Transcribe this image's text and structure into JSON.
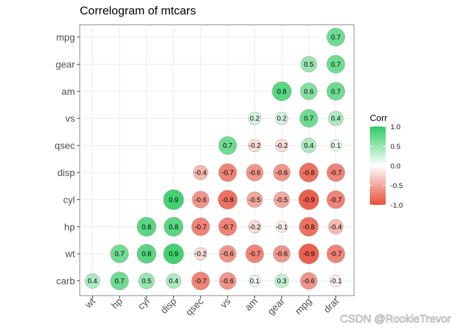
{
  "chart_data": {
    "type": "heatmap",
    "title": "Correlogram of mtcars",
    "x_labels": [
      "wt",
      "hp",
      "cyl",
      "disp",
      "qsec",
      "vs",
      "am",
      "gear",
      "mpg",
      "drat"
    ],
    "y_labels": [
      "mpg",
      "gear",
      "am",
      "vs",
      "qsec",
      "disp",
      "cyl",
      "hp",
      "wt",
      "carb"
    ],
    "cells": [
      {
        "x": "drat",
        "y": "mpg",
        "value": 0.7
      },
      {
        "x": "mpg",
        "y": "gear",
        "value": 0.5
      },
      {
        "x": "drat",
        "y": "gear",
        "value": 0.7
      },
      {
        "x": "gear",
        "y": "am",
        "value": 0.8
      },
      {
        "x": "mpg",
        "y": "am",
        "value": 0.6
      },
      {
        "x": "drat",
        "y": "am",
        "value": 0.7
      },
      {
        "x": "am",
        "y": "vs",
        "value": 0.2
      },
      {
        "x": "gear",
        "y": "vs",
        "value": 0.2
      },
      {
        "x": "mpg",
        "y": "vs",
        "value": 0.7
      },
      {
        "x": "drat",
        "y": "vs",
        "value": 0.4
      },
      {
        "x": "vs",
        "y": "qsec",
        "value": 0.7
      },
      {
        "x": "am",
        "y": "qsec",
        "value": -0.2
      },
      {
        "x": "gear",
        "y": "qsec",
        "value": -0.2
      },
      {
        "x": "mpg",
        "y": "qsec",
        "value": 0.4
      },
      {
        "x": "drat",
        "y": "qsec",
        "value": 0.1
      },
      {
        "x": "qsec",
        "y": "disp",
        "value": -0.4
      },
      {
        "x": "vs",
        "y": "disp",
        "value": -0.7
      },
      {
        "x": "am",
        "y": "disp",
        "value": -0.6
      },
      {
        "x": "gear",
        "y": "disp",
        "value": -0.6
      },
      {
        "x": "mpg",
        "y": "disp",
        "value": -0.8
      },
      {
        "x": "drat",
        "y": "disp",
        "value": -0.7
      },
      {
        "x": "disp",
        "y": "cyl",
        "value": 0.9
      },
      {
        "x": "qsec",
        "y": "cyl",
        "value": -0.6
      },
      {
        "x": "vs",
        "y": "cyl",
        "value": -0.8
      },
      {
        "x": "am",
        "y": "cyl",
        "value": -0.5
      },
      {
        "x": "gear",
        "y": "cyl",
        "value": -0.5
      },
      {
        "x": "mpg",
        "y": "cyl",
        "value": -0.9
      },
      {
        "x": "drat",
        "y": "cyl",
        "value": -0.7
      },
      {
        "x": "cyl",
        "y": "hp",
        "value": 0.8
      },
      {
        "x": "disp",
        "y": "hp",
        "value": 0.8
      },
      {
        "x": "qsec",
        "y": "hp",
        "value": -0.7
      },
      {
        "x": "vs",
        "y": "hp",
        "value": -0.7
      },
      {
        "x": "am",
        "y": "hp",
        "value": -0.2
      },
      {
        "x": "gear",
        "y": "hp",
        "value": -0.1
      },
      {
        "x": "mpg",
        "y": "hp",
        "value": -0.8
      },
      {
        "x": "drat",
        "y": "hp",
        "value": -0.4
      },
      {
        "x": "hp",
        "y": "wt",
        "value": 0.7
      },
      {
        "x": "cyl",
        "y": "wt",
        "value": 0.8
      },
      {
        "x": "disp",
        "y": "wt",
        "value": 0.9
      },
      {
        "x": "qsec",
        "y": "wt",
        "value": -0.2
      },
      {
        "x": "vs",
        "y": "wt",
        "value": -0.6
      },
      {
        "x": "am",
        "y": "wt",
        "value": -0.7
      },
      {
        "x": "gear",
        "y": "wt",
        "value": -0.6
      },
      {
        "x": "mpg",
        "y": "wt",
        "value": -0.9
      },
      {
        "x": "drat",
        "y": "wt",
        "value": -0.7
      },
      {
        "x": "wt",
        "y": "carb",
        "value": 0.4
      },
      {
        "x": "hp",
        "y": "carb",
        "value": 0.7
      },
      {
        "x": "cyl",
        "y": "carb",
        "value": 0.5
      },
      {
        "x": "disp",
        "y": "carb",
        "value": 0.4
      },
      {
        "x": "qsec",
        "y": "carb",
        "value": -0.7
      },
      {
        "x": "vs",
        "y": "carb",
        "value": -0.6
      },
      {
        "x": "am",
        "y": "carb",
        "value": 0.1
      },
      {
        "x": "gear",
        "y": "carb",
        "value": 0.3
      },
      {
        "x": "mpg",
        "y": "carb",
        "value": -0.6
      },
      {
        "x": "drat",
        "y": "carb",
        "value": -0.1
      }
    ],
    "legend": {
      "title": "Corr",
      "ticks": [
        {
          "value": 1.0,
          "label": "1.0"
        },
        {
          "value": 0.5,
          "label": "0.5"
        },
        {
          "value": 0.0,
          "label": "0.0"
        },
        {
          "value": -0.5,
          "label": "-0.5"
        },
        {
          "value": -1.0,
          "label": "-1.0"
        }
      ],
      "placement": "right"
    },
    "value_range": [
      -1.0,
      1.0
    ],
    "colors": {
      "low": "#e84e3a",
      "mid": "#ffffff",
      "high": "#2ecc62"
    },
    "grid": true
  },
  "watermark": "CSDN @RookieTrevor"
}
